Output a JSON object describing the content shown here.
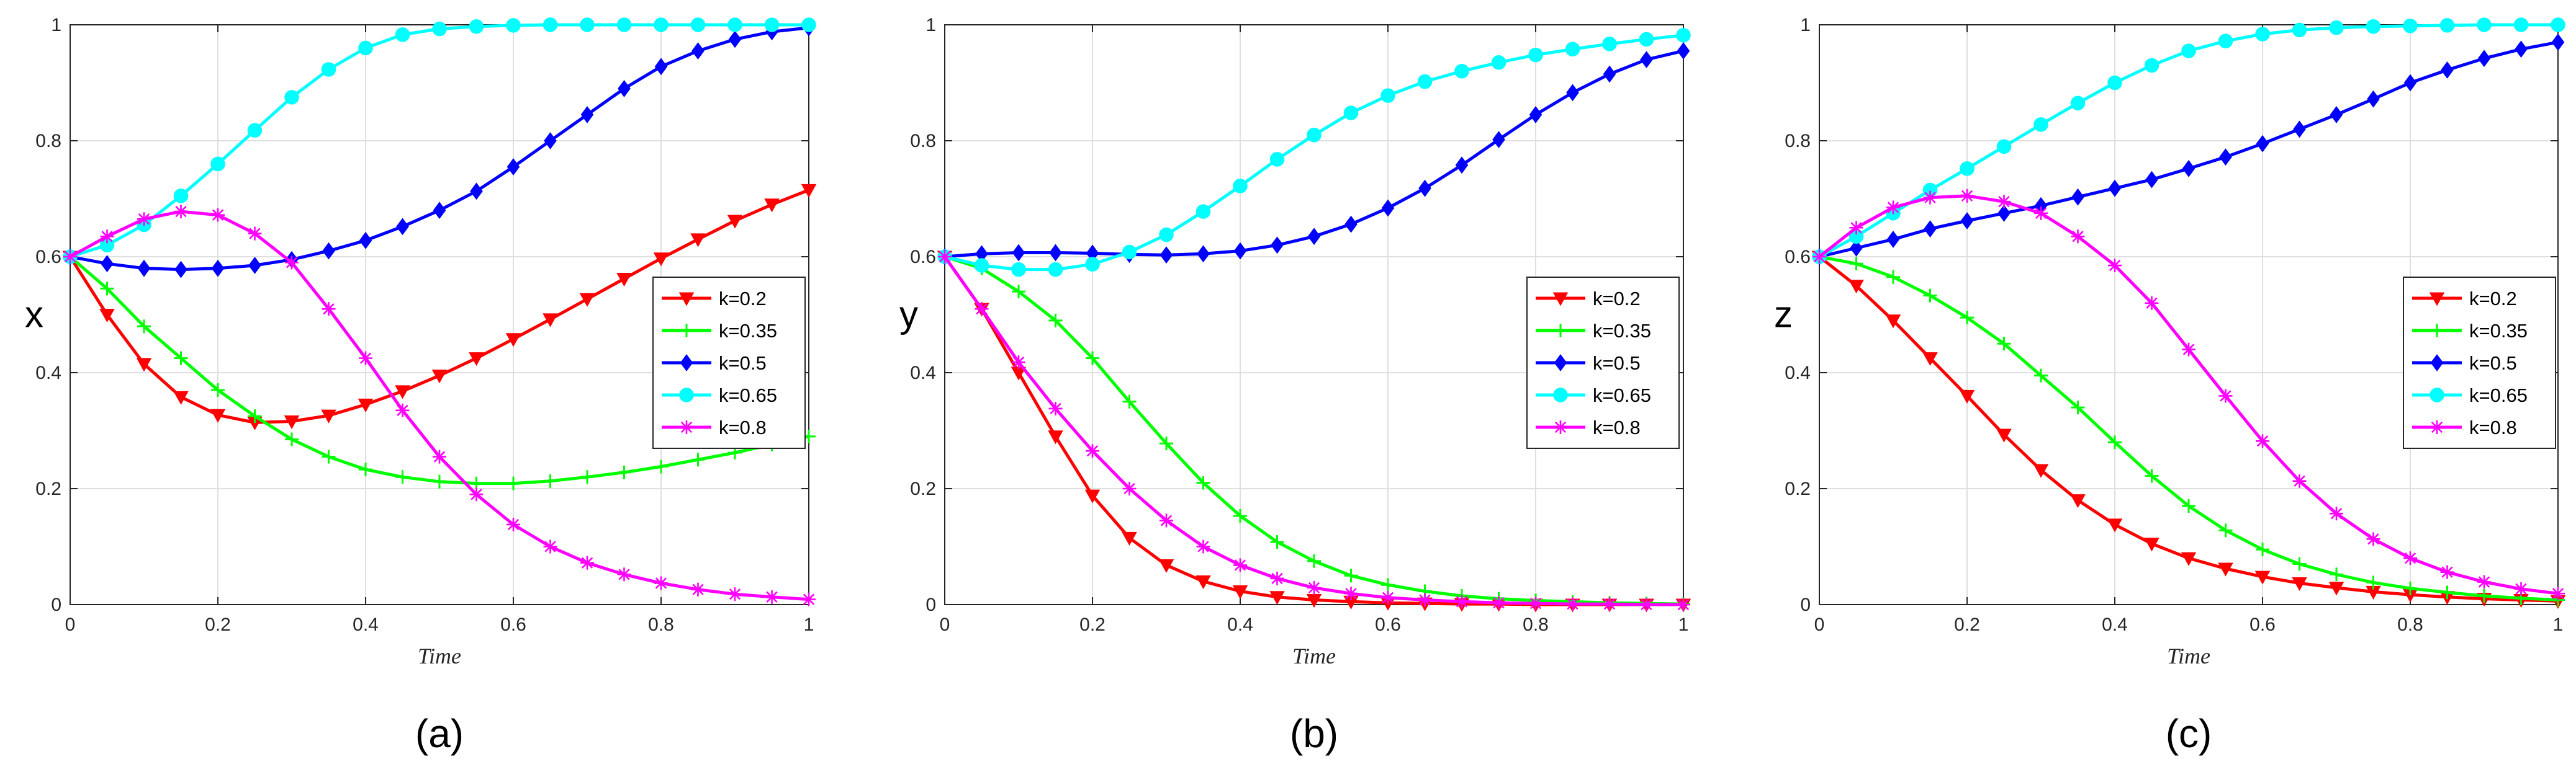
{
  "chart_data": [
    {
      "type": "line",
      "panel_label": "(a)",
      "xlabel": "Time",
      "ylabel": "x",
      "xlim": [
        0,
        1
      ],
      "ylim": [
        0,
        1
      ],
      "xticks": [
        "0",
        "0.2",
        "0.4",
        "0.6",
        "0.8",
        "1"
      ],
      "yticks": [
        "0",
        "0.2",
        "0.4",
        "0.6",
        "0.8",
        "1"
      ],
      "grid": true,
      "legend_position": "center-right",
      "x": [
        0,
        0.05,
        0.1,
        0.15,
        0.2,
        0.25,
        0.3,
        0.35,
        0.4,
        0.45,
        0.5,
        0.55,
        0.6,
        0.65,
        0.7,
        0.75,
        0.8,
        0.85,
        0.9,
        0.95,
        1.0
      ],
      "series": [
        {
          "name": "k=0.2",
          "color": "#ff0000",
          "marker": "triangle-down",
          "values": [
            0.6,
            0.5,
            0.415,
            0.358,
            0.327,
            0.314,
            0.316,
            0.326,
            0.345,
            0.368,
            0.395,
            0.425,
            0.458,
            0.492,
            0.527,
            0.562,
            0.597,
            0.63,
            0.662,
            0.69,
            0.715
          ]
        },
        {
          "name": "k=0.35",
          "color": "#00ff00",
          "marker": "plus",
          "values": [
            0.6,
            0.545,
            0.48,
            0.425,
            0.37,
            0.325,
            0.285,
            0.255,
            0.233,
            0.22,
            0.212,
            0.209,
            0.209,
            0.213,
            0.22,
            0.228,
            0.238,
            0.25,
            0.262,
            0.276,
            0.29
          ]
        },
        {
          "name": "k=0.5",
          "color": "#0000ff",
          "marker": "diamond",
          "values": [
            0.6,
            0.588,
            0.58,
            0.578,
            0.58,
            0.585,
            0.595,
            0.61,
            0.628,
            0.652,
            0.68,
            0.713,
            0.755,
            0.8,
            0.845,
            0.89,
            0.928,
            0.955,
            0.975,
            0.988,
            0.995
          ]
        },
        {
          "name": "k=0.65",
          "color": "#00ffff",
          "marker": "circle",
          "values": [
            0.6,
            0.62,
            0.655,
            0.705,
            0.76,
            0.818,
            0.875,
            0.923,
            0.96,
            0.983,
            0.993,
            0.997,
            0.999,
            1.0,
            1.0,
            1.0,
            1.0,
            1.0,
            1.0,
            1.0,
            1.0
          ]
        },
        {
          "name": "k=0.8",
          "color": "#ff00ff",
          "marker": "star",
          "values": [
            0.6,
            0.635,
            0.665,
            0.678,
            0.672,
            0.64,
            0.59,
            0.51,
            0.425,
            0.335,
            0.255,
            0.19,
            0.138,
            0.1,
            0.072,
            0.052,
            0.037,
            0.026,
            0.018,
            0.013,
            0.009
          ]
        }
      ]
    },
    {
      "type": "line",
      "panel_label": "(b)",
      "xlabel": "Time",
      "ylabel": "y",
      "xlim": [
        0,
        1
      ],
      "ylim": [
        0,
        1
      ],
      "xticks": [
        "0",
        "0.2",
        "0.4",
        "0.6",
        "0.8",
        "1"
      ],
      "yticks": [
        "0",
        "0.2",
        "0.4",
        "0.6",
        "0.8",
        "1"
      ],
      "grid": true,
      "legend_position": "center-right",
      "x": [
        0,
        0.05,
        0.1,
        0.15,
        0.2,
        0.25,
        0.3,
        0.35,
        0.4,
        0.45,
        0.5,
        0.55,
        0.6,
        0.65,
        0.7,
        0.75,
        0.8,
        0.85,
        0.9,
        0.95,
        1.0
      ],
      "series": [
        {
          "name": "k=0.2",
          "color": "#ff0000",
          "marker": "triangle-down",
          "values": [
            0.6,
            0.51,
            0.4,
            0.29,
            0.188,
            0.115,
            0.068,
            0.04,
            0.023,
            0.013,
            0.008,
            0.005,
            0.003,
            0.002,
            0.001,
            0.001,
            0.0,
            0.0,
            0.0,
            0.0,
            0.0
          ]
        },
        {
          "name": "k=0.35",
          "color": "#00ff00",
          "marker": "plus",
          "values": [
            0.6,
            0.58,
            0.54,
            0.49,
            0.425,
            0.35,
            0.278,
            0.21,
            0.153,
            0.108,
            0.075,
            0.05,
            0.034,
            0.023,
            0.015,
            0.01,
            0.007,
            0.005,
            0.003,
            0.002,
            0.001
          ]
        },
        {
          "name": "k=0.5",
          "color": "#0000ff",
          "marker": "diamond",
          "values": [
            0.6,
            0.605,
            0.607,
            0.607,
            0.606,
            0.604,
            0.603,
            0.605,
            0.61,
            0.62,
            0.635,
            0.656,
            0.684,
            0.718,
            0.758,
            0.802,
            0.845,
            0.883,
            0.915,
            0.94,
            0.955
          ]
        },
        {
          "name": "k=0.65",
          "color": "#00ffff",
          "marker": "circle",
          "values": [
            0.6,
            0.585,
            0.578,
            0.578,
            0.587,
            0.608,
            0.638,
            0.678,
            0.722,
            0.768,
            0.81,
            0.848,
            0.878,
            0.902,
            0.92,
            0.935,
            0.948,
            0.958,
            0.967,
            0.975,
            0.982
          ]
        },
        {
          "name": "k=0.8",
          "color": "#ff00ff",
          "marker": "star",
          "values": [
            0.6,
            0.51,
            0.418,
            0.338,
            0.265,
            0.2,
            0.145,
            0.1,
            0.068,
            0.045,
            0.029,
            0.019,
            0.012,
            0.008,
            0.005,
            0.003,
            0.002,
            0.001,
            0.001,
            0.0,
            0.0
          ]
        }
      ]
    },
    {
      "type": "line",
      "panel_label": "(c)",
      "xlabel": "Time",
      "ylabel": "z",
      "xlim": [
        0,
        1
      ],
      "ylim": [
        0,
        1
      ],
      "xticks": [
        "0",
        "0.2",
        "0.4",
        "0.6",
        "0.8",
        "1"
      ],
      "yticks": [
        "0",
        "0.2",
        "0.4",
        "0.6",
        "0.8",
        "1"
      ],
      "grid": true,
      "legend_position": "center-right",
      "x": [
        0,
        0.05,
        0.1,
        0.15,
        0.2,
        0.25,
        0.3,
        0.35,
        0.4,
        0.45,
        0.5,
        0.55,
        0.6,
        0.65,
        0.7,
        0.75,
        0.8,
        0.85,
        0.9,
        0.95,
        1.0
      ],
      "series": [
        {
          "name": "k=0.2",
          "color": "#ff0000",
          "marker": "triangle-down",
          "values": [
            0.6,
            0.55,
            0.49,
            0.425,
            0.36,
            0.293,
            0.232,
            0.18,
            0.138,
            0.105,
            0.08,
            0.062,
            0.048,
            0.037,
            0.029,
            0.022,
            0.017,
            0.013,
            0.01,
            0.008,
            0.006
          ]
        },
        {
          "name": "k=0.35",
          "color": "#00ff00",
          "marker": "plus",
          "values": [
            0.6,
            0.588,
            0.565,
            0.533,
            0.495,
            0.45,
            0.395,
            0.34,
            0.28,
            0.222,
            0.17,
            0.128,
            0.095,
            0.07,
            0.052,
            0.038,
            0.028,
            0.021,
            0.015,
            0.011,
            0.008
          ]
        },
        {
          "name": "k=0.5",
          "color": "#0000ff",
          "marker": "diamond",
          "values": [
            0.6,
            0.615,
            0.63,
            0.648,
            0.662,
            0.675,
            0.688,
            0.703,
            0.718,
            0.733,
            0.752,
            0.772,
            0.795,
            0.82,
            0.845,
            0.872,
            0.9,
            0.922,
            0.942,
            0.958,
            0.97
          ]
        },
        {
          "name": "k=0.65",
          "color": "#00ffff",
          "marker": "circle",
          "values": [
            0.6,
            0.635,
            0.675,
            0.715,
            0.752,
            0.79,
            0.828,
            0.865,
            0.9,
            0.93,
            0.955,
            0.972,
            0.984,
            0.991,
            0.995,
            0.997,
            0.998,
            0.999,
            1.0,
            1.0,
            1.0
          ]
        },
        {
          "name": "k=0.8",
          "color": "#ff00ff",
          "marker": "star",
          "values": [
            0.6,
            0.65,
            0.685,
            0.702,
            0.705,
            0.695,
            0.675,
            0.635,
            0.585,
            0.52,
            0.44,
            0.36,
            0.282,
            0.213,
            0.157,
            0.113,
            0.08,
            0.056,
            0.039,
            0.027,
            0.019
          ]
        }
      ]
    }
  ]
}
